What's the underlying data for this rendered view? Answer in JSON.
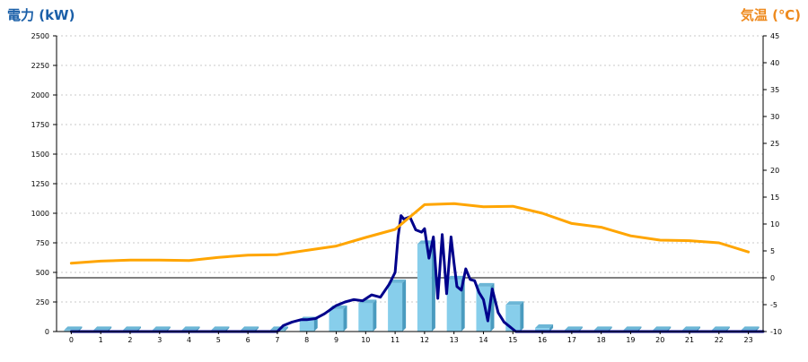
{
  "chart_data": {
    "type": "bar",
    "title": "",
    "left_axis": {
      "label": "電力 (kW)",
      "ylim": [
        0,
        2500
      ],
      "ticks": [
        0,
        250,
        500,
        750,
        1000,
        1250,
        1500,
        1750,
        2000,
        2250,
        2500
      ]
    },
    "right_axis": {
      "label": "気温 (℃)",
      "ylim": [
        -10,
        45
      ],
      "ticks": [
        -10,
        -5,
        0,
        5,
        10,
        15,
        20,
        25,
        30,
        35,
        40,
        45
      ]
    },
    "grid": true,
    "categories": [
      "0",
      "1",
      "2",
      "3",
      "4",
      "5",
      "6",
      "7",
      "8",
      "9",
      "10",
      "11",
      "12",
      "13",
      "14",
      "15",
      "16",
      "17",
      "18",
      "19",
      "20",
      "21",
      "22",
      "23"
    ],
    "series": [
      {
        "type": "bar",
        "axis": "left",
        "color": "#87ceeb",
        "values": [
          12,
          12,
          12,
          12,
          12,
          12,
          12,
          12,
          95,
          190,
          240,
          410,
          740,
          440,
          380,
          225,
          30,
          12,
          12,
          12,
          12,
          12,
          12,
          12
        ]
      },
      {
        "type": "line",
        "axis": "left",
        "color": "#00008b",
        "x": [
          0,
          7,
          7.2,
          7.5,
          7.8,
          8.0,
          8.3,
          8.6,
          9.0,
          9.3,
          9.6,
          9.9,
          10.2,
          10.5,
          10.8,
          11.0,
          11.1,
          11.2,
          11.3,
          11.5,
          11.7,
          11.9,
          12.0,
          12.15,
          12.3,
          12.45,
          12.6,
          12.75,
          12.9,
          13.0,
          13.1,
          13.25,
          13.4,
          13.55,
          13.7,
          13.85,
          14.0,
          14.15,
          14.3,
          14.5,
          14.7,
          14.9,
          15.0,
          15.1,
          15.3,
          15.6,
          15.9,
          16.0,
          23.5
        ],
        "values": [
          0,
          0,
          50,
          80,
          100,
          100,
          110,
          150,
          220,
          250,
          270,
          260,
          310,
          290,
          400,
          500,
          800,
          980,
          950,
          970,
          860,
          840,
          870,
          620,
          800,
          280,
          820,
          320,
          800,
          580,
          380,
          350,
          530,
          440,
          430,
          330,
          270,
          90,
          360,
          160,
          80,
          40,
          20,
          0,
          0,
          0,
          0,
          0,
          0
        ]
      },
      {
        "type": "line",
        "axis": "right",
        "color": "#ffa500",
        "values": [
          2.7,
          3.1,
          3.3,
          3.3,
          3.2,
          3.8,
          4.2,
          4.3,
          5.1,
          5.9,
          7.5,
          9.0,
          13.6,
          13.8,
          13.2,
          13.3,
          12.0,
          10.1,
          9.4,
          7.8,
          7.0,
          6.9,
          6.5,
          4.8
        ]
      }
    ]
  }
}
